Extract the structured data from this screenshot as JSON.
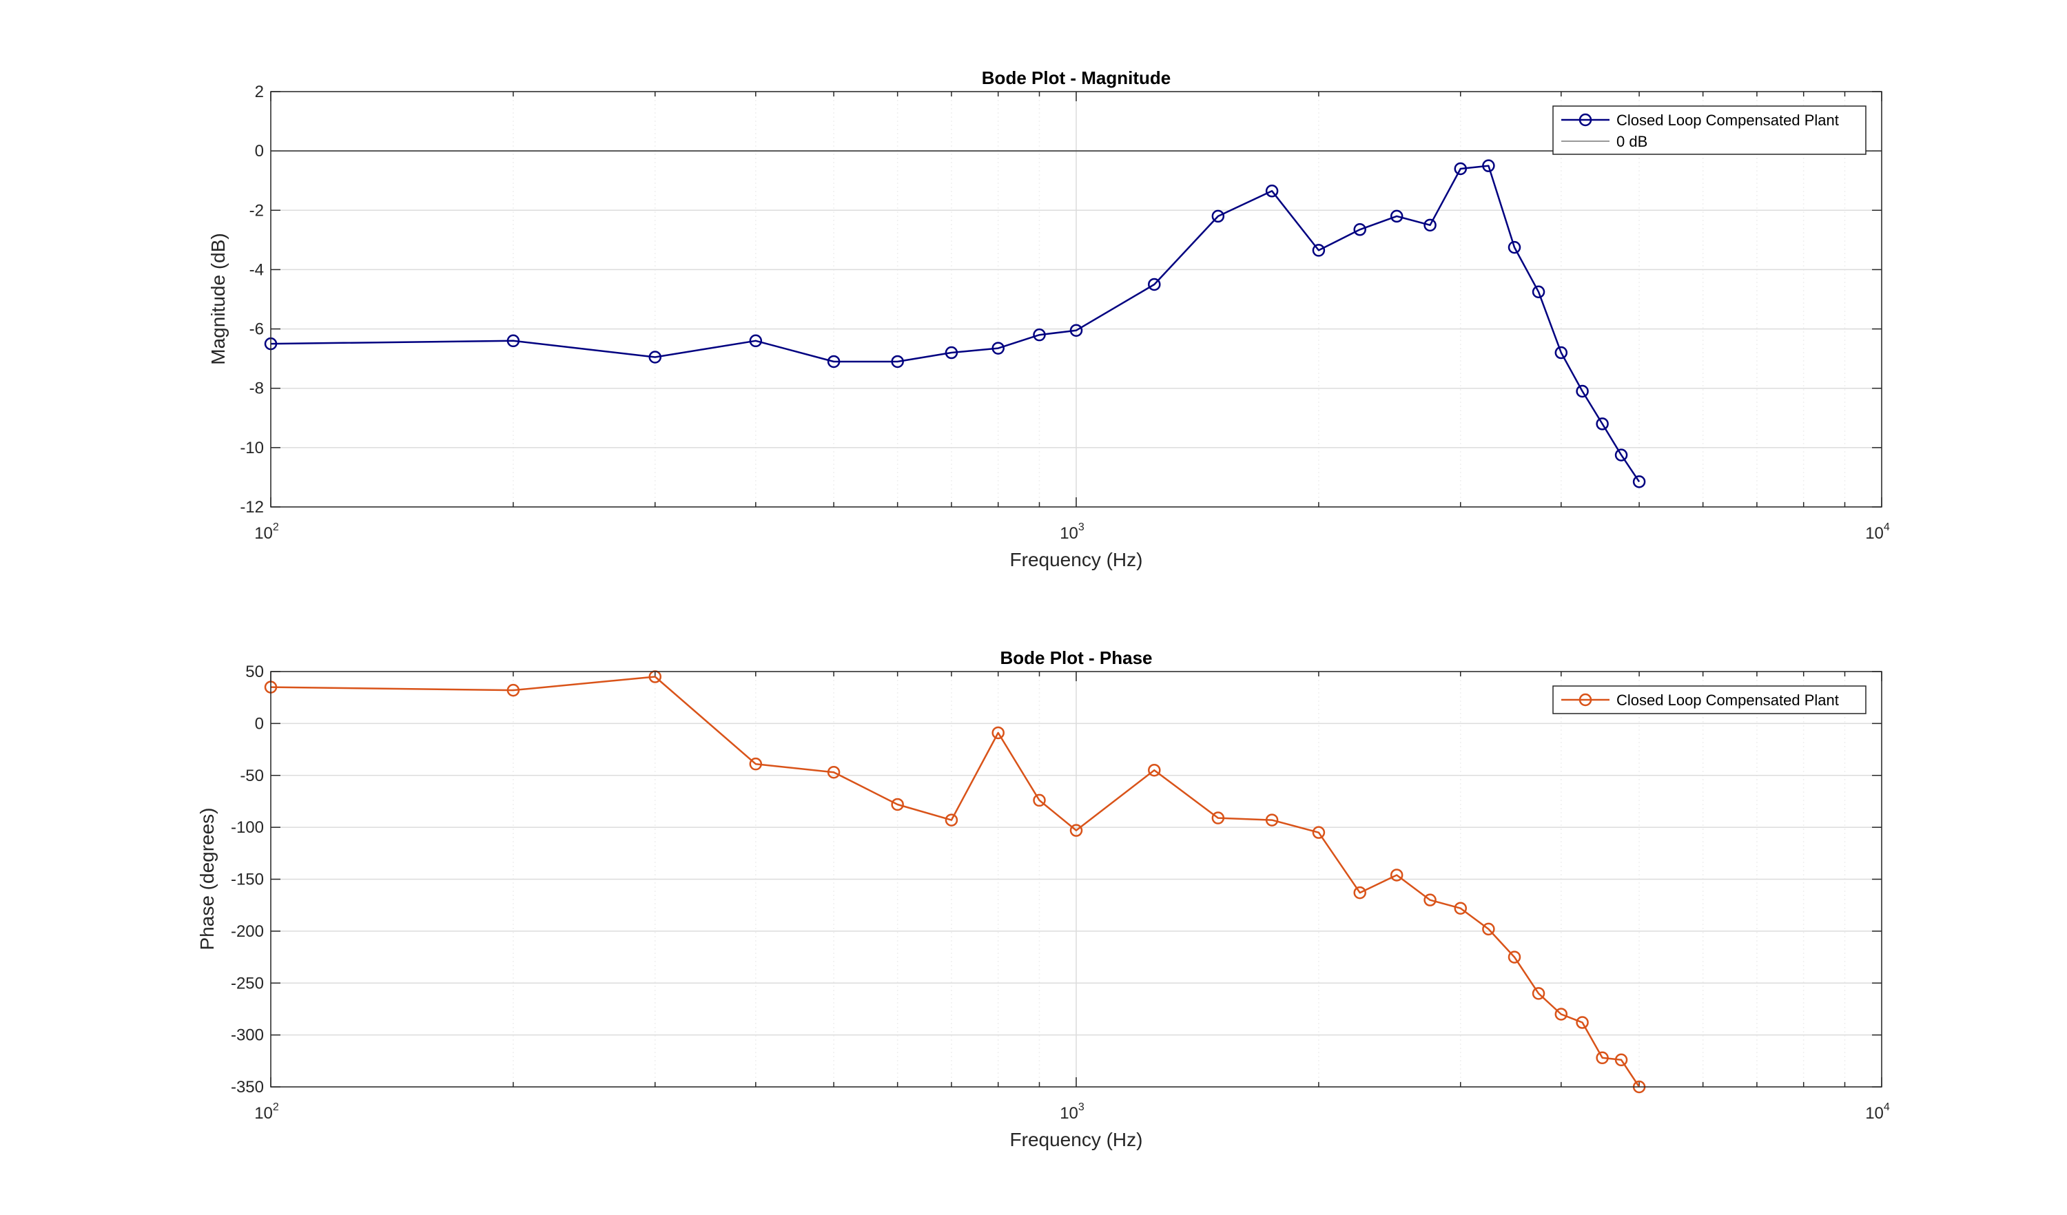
{
  "chart_data": [
    {
      "type": "line",
      "title": "Bode Plot - Magnitude",
      "xlabel": "Frequency (Hz)",
      "ylabel": "Magnitude (dB)",
      "xscale": "log",
      "xlim": [
        100,
        10000
      ],
      "ylim": [
        -12,
        2
      ],
      "xticks": [
        100,
        1000,
        10000
      ],
      "xtick_labels": [
        {
          "base": "10",
          "exp": "2"
        },
        {
          "base": "10",
          "exp": "3"
        },
        {
          "base": "10",
          "exp": "4"
        }
      ],
      "yticks": [
        -12,
        -10,
        -8,
        -6,
        -4,
        -2,
        0,
        2
      ],
      "ytick_labels": [
        "-12",
        "-10",
        "-8",
        "-6",
        "-4",
        "-2",
        "0",
        "2"
      ],
      "grid": true,
      "legend_position": "top-right",
      "series": [
        {
          "name": "Closed Loop Compensated Plant",
          "color": "#000080",
          "marker": "circle",
          "x": [
            100,
            200,
            300,
            400,
            500,
            600,
            700,
            800,
            900,
            1000,
            1250,
            1500,
            1750,
            2000,
            2250,
            2500,
            2750,
            3000,
            3250,
            3500,
            3750,
            4000,
            4250,
            4500,
            4750,
            5000
          ],
          "y": [
            -6.5,
            -6.4,
            -6.95,
            -6.4,
            -7.1,
            -7.1,
            -6.8,
            -6.65,
            -6.2,
            -6.05,
            -4.5,
            -2.2,
            -1.35,
            -3.35,
            -2.65,
            -2.2,
            -2.5,
            -0.6,
            -0.5,
            -3.25,
            -4.75,
            -6.8,
            -8.1,
            -9.2,
            -10.25,
            -11.15
          ]
        },
        {
          "name": "0 dB",
          "color": "#555555",
          "marker": "none",
          "x": [
            100,
            10000
          ],
          "y": [
            0,
            0
          ]
        }
      ]
    },
    {
      "type": "line",
      "title": "Bode Plot - Phase",
      "xlabel": "Frequency (Hz)",
      "ylabel": "Phase (degrees)",
      "xscale": "log",
      "xlim": [
        100,
        10000
      ],
      "ylim": [
        -350,
        50
      ],
      "xticks": [
        100,
        1000,
        10000
      ],
      "xtick_labels": [
        {
          "base": "10",
          "exp": "2"
        },
        {
          "base": "10",
          "exp": "3"
        },
        {
          "base": "10",
          "exp": "4"
        }
      ],
      "yticks": [
        -350,
        -300,
        -250,
        -200,
        -150,
        -100,
        -50,
        0,
        50
      ],
      "ytick_labels": [
        "-350",
        "-300",
        "-250",
        "-200",
        "-150",
        "-100",
        "-50",
        "0",
        "50"
      ],
      "grid": true,
      "legend_position": "top-right",
      "series": [
        {
          "name": "Closed Loop Compensated Plant",
          "color": "#D95319",
          "marker": "circle",
          "x": [
            100,
            200,
            300,
            400,
            500,
            600,
            700,
            800,
            900,
            1000,
            1250,
            1500,
            1750,
            2000,
            2250,
            2500,
            2750,
            3000,
            3250,
            3500,
            3750,
            4000,
            4250,
            4500,
            4750,
            5000
          ],
          "y": [
            35,
            32,
            45,
            -39,
            -47,
            -78,
            -93,
            -9,
            -74,
            -103,
            -45,
            -91,
            -93,
            -105,
            -163,
            -146,
            -170,
            -178,
            -198,
            -225,
            -260,
            -280,
            -288,
            -322,
            -324,
            -350
          ]
        }
      ]
    }
  ]
}
